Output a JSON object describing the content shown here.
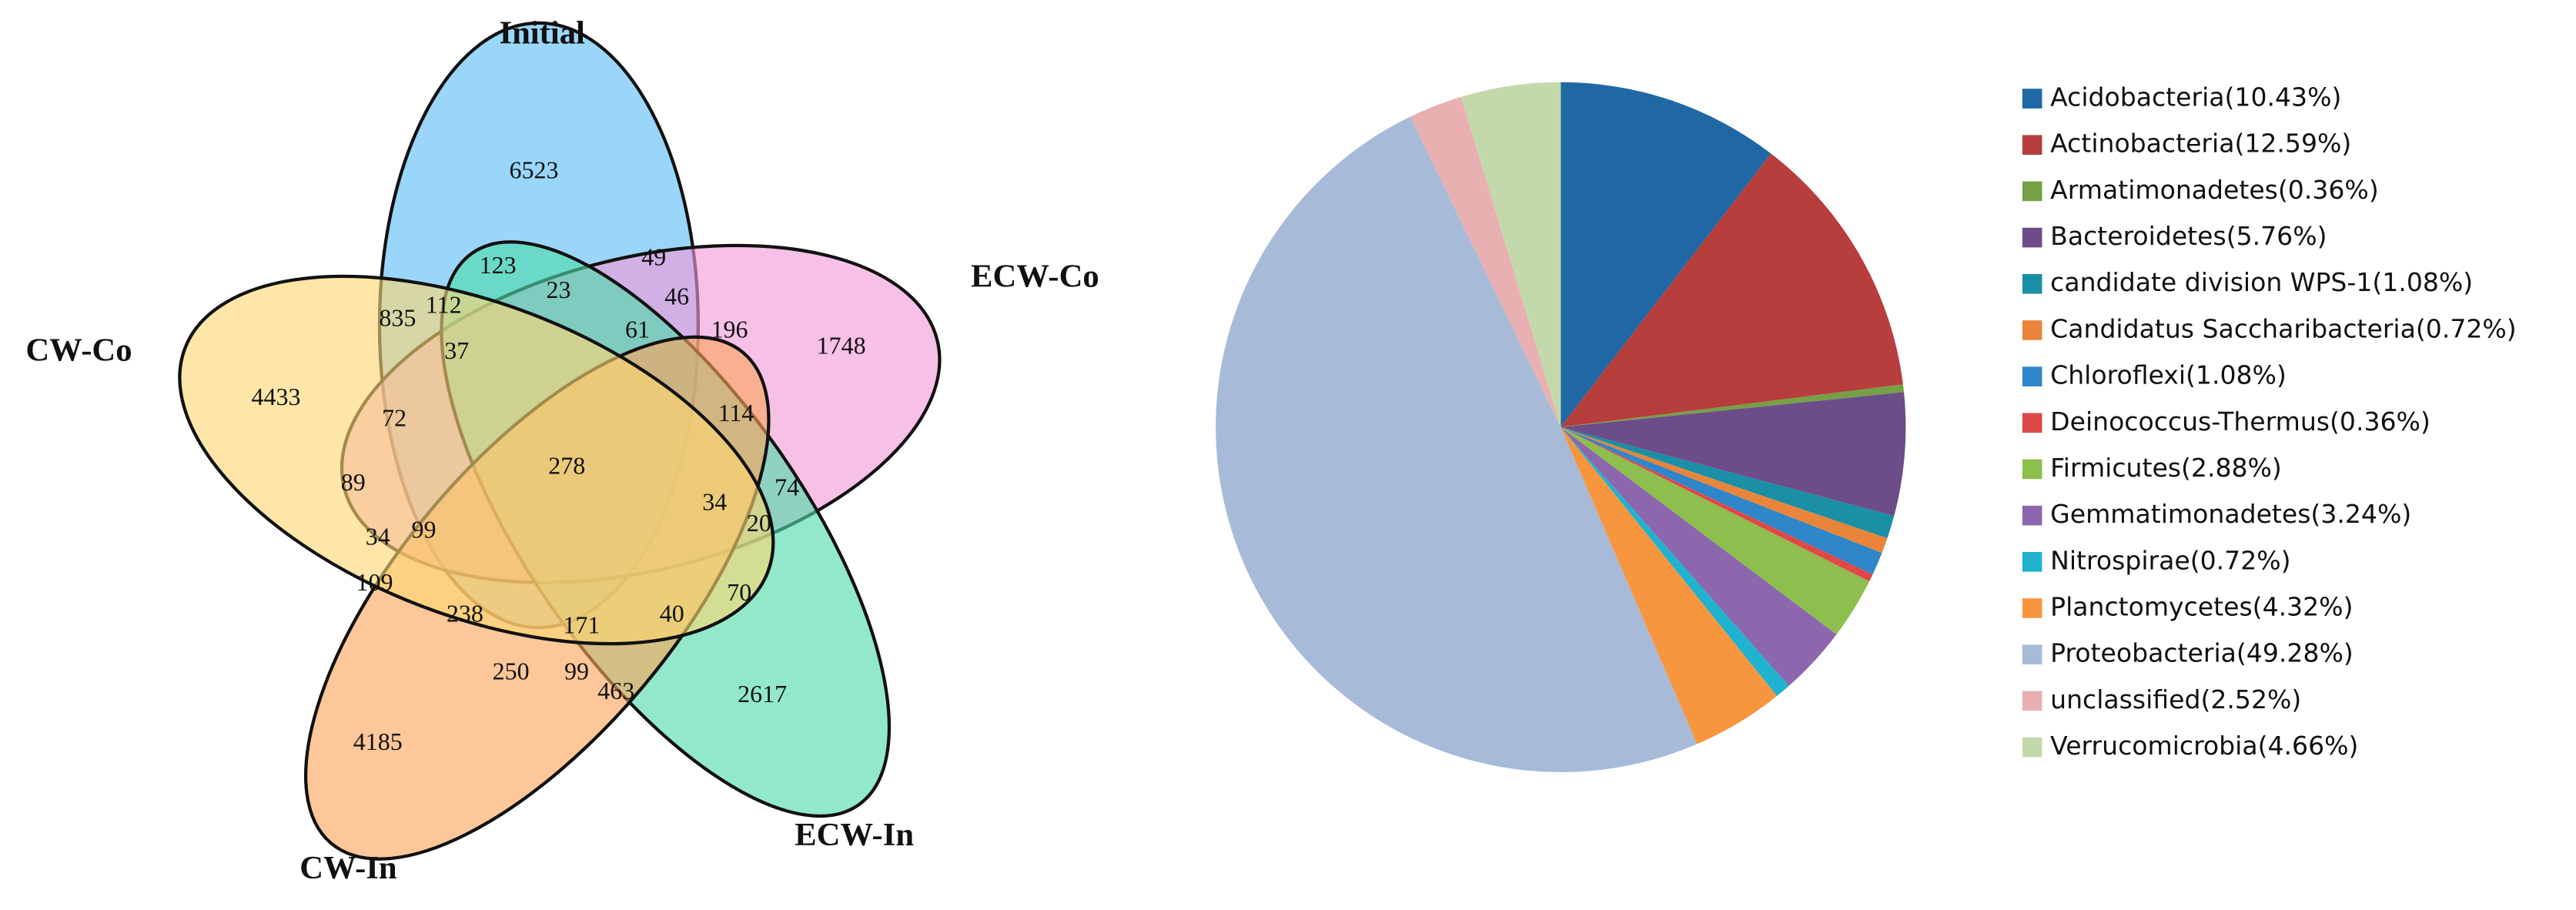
{
  "chart_data": [
    {
      "type": "venn",
      "sets": [
        "Initial",
        "ECW-Co",
        "ECW-In",
        "CW-In",
        "CW-Co"
      ],
      "colors": [
        "#5bbdf7",
        "#f29ad8",
        "#4fdca8",
        "#fba45a",
        "#fcd672"
      ],
      "values": [
        6523,
        123,
        49,
        23,
        835,
        112,
        46,
        196,
        1748,
        37,
        61,
        4433,
        72,
        114,
        278,
        89,
        34,
        74,
        20,
        34,
        99,
        109,
        70,
        238,
        171,
        40,
        250,
        99,
        463,
        2617,
        4185
      ]
    },
    {
      "type": "pie",
      "categories": [
        "Acidobacteria(10.43%)",
        "Actinobacteria(12.59%)",
        "Armatimonadetes(0.36%)",
        "Bacteroidetes(5.76%)",
        "candidate division WPS-1(1.08%)",
        "Candidatus Saccharibacteria(0.72%)",
        "Chloroflexi(1.08%)",
        "Deinococcus-Thermus(0.36%)",
        "Firmicutes(2.88%)",
        "Gemmatimonadetes(3.24%)",
        "Nitrospirae(0.72%)",
        "Planctomycetes(4.32%)",
        "Proteobacteria(49.28%)",
        "unclassified(2.52%)",
        "Verrucomicrobia(4.66%)"
      ],
      "values": [
        10.43,
        12.59,
        0.36,
        5.76,
        1.08,
        0.72,
        1.08,
        0.36,
        2.88,
        3.24,
        0.72,
        4.32,
        49.28,
        2.52,
        4.66
      ],
      "colors": [
        "#1f68a3",
        "#b83d3d",
        "#76a045",
        "#6d4c8a",
        "#1a8fa5",
        "#e8853a",
        "#2f86c8",
        "#e04848",
        "#8cbf4d",
        "#8c67ad",
        "#1fb3cf",
        "#f7963e",
        "#a7bbd9",
        "#e8b0b0",
        "#c3d9ac"
      ]
    }
  ]
}
